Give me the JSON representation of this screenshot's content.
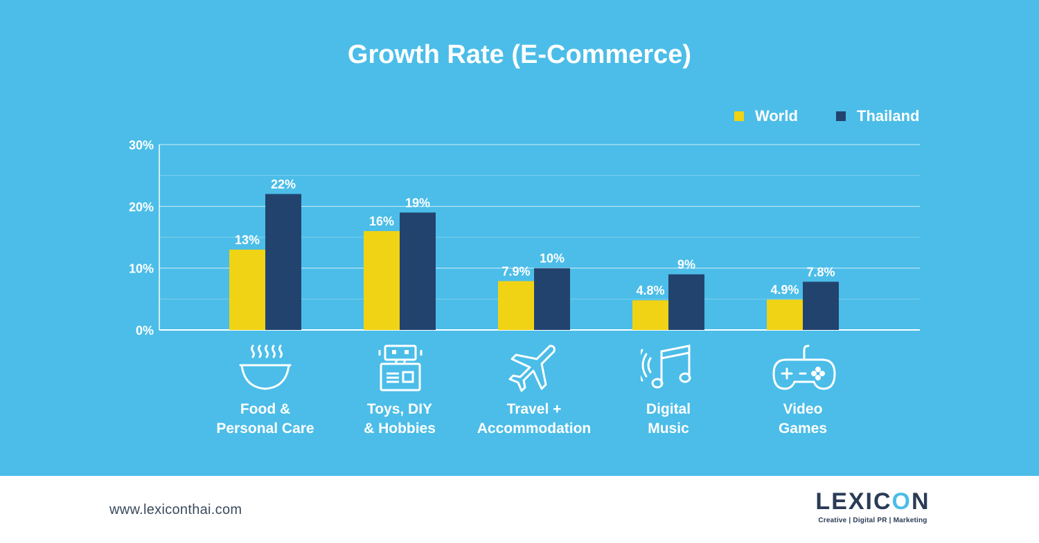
{
  "title": "Growth Rate (E-Commerce)",
  "colors": {
    "background": "#4bbde8",
    "world": "#f0d314",
    "thailand": "#23436f",
    "axis": "#ffffff"
  },
  "legend": [
    {
      "label": "World",
      "color": "#f0d314"
    },
    {
      "label": "Thailand",
      "color": "#23436f"
    }
  ],
  "chart_data": {
    "type": "bar",
    "title": "Growth Rate (E-Commerce)",
    "categories": [
      "Food &\nPersonal Care",
      "Toys, DIY\n& Hobbies",
      "Travel +\nAccommodation",
      "Digital\nMusic",
      "Video\nGames"
    ],
    "series": [
      {
        "name": "World",
        "values": [
          13,
          16,
          7.9,
          4.8,
          4.9
        ],
        "labels": [
          "13%",
          "16%",
          "7.9%",
          "4.8%",
          "4.9%"
        ]
      },
      {
        "name": "Thailand",
        "values": [
          22,
          19,
          10,
          9,
          7.8
        ],
        "labels": [
          "22%",
          "19%",
          "10%",
          "9%",
          "7.8%"
        ]
      }
    ],
    "yticks": [
      0,
      10,
      20,
      30
    ],
    "ytick_labels": [
      "0%",
      "10%",
      "20%",
      "30%"
    ],
    "ylim": [
      0,
      30
    ],
    "grid": true,
    "legend_position": "top-right"
  },
  "categories_display": [
    {
      "label": "Food &\nPersonal Care",
      "icon": "bowl-icon"
    },
    {
      "label": "Toys, DIY\n& Hobbies",
      "icon": "robot-icon"
    },
    {
      "label": "Travel +\nAccommodation",
      "icon": "airplane-icon"
    },
    {
      "label": "Digital\nMusic",
      "icon": "music-note-icon"
    },
    {
      "label": "Video\nGames",
      "icon": "gamepad-icon"
    }
  ],
  "footer": {
    "url": "www.lexiconthai.com",
    "logo_word_pre": "LEXIC",
    "logo_word_o": "O",
    "logo_word_post": "N",
    "logo_tagline": "Creative  |  Digital PR  |  Marketing"
  }
}
